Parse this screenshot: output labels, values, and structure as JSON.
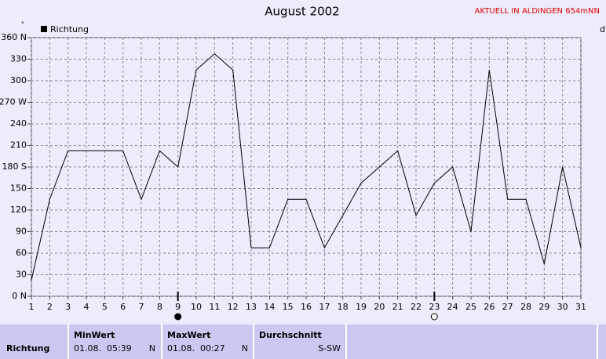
{
  "chart_data": {
    "type": "line",
    "title": "August 2002",
    "subtitle": "AKTUELL IN ALDINGEN 654mNN",
    "corner_label": "d",
    "unit_mark": "°",
    "x": [
      1,
      2,
      3,
      4,
      5,
      6,
      7,
      8,
      9,
      10,
      11,
      12,
      13,
      14,
      15,
      16,
      17,
      18,
      19,
      20,
      21,
      22,
      23,
      24,
      25,
      26,
      27,
      28,
      29,
      30,
      31
    ],
    "xlim": [
      1,
      31
    ],
    "xticks": [
      1,
      2,
      3,
      4,
      5,
      6,
      7,
      8,
      9,
      10,
      11,
      12,
      13,
      14,
      15,
      16,
      17,
      18,
      19,
      20,
      21,
      22,
      23,
      24,
      25,
      26,
      27,
      28,
      29,
      30,
      31
    ],
    "ylim": [
      0,
      360
    ],
    "yticks": [
      {
        "value": 0,
        "label": "0 N"
      },
      30,
      60,
      90,
      120,
      150,
      {
        "value": 180,
        "label": "180 S"
      },
      210,
      240,
      {
        "value": 270,
        "label": "270 W"
      },
      300,
      330,
      {
        "value": 360,
        "label": "360 N"
      }
    ],
    "grid": true,
    "legend": "top-left",
    "series": [
      {
        "name": "Richtung",
        "color": "#000000",
        "values": [
          22.5,
          135,
          202.5,
          202.5,
          202.5,
          202.5,
          135,
          202.5,
          180,
          315,
          337.5,
          315,
          67.5,
          67.5,
          135,
          135,
          67.5,
          112.5,
          157.5,
          180,
          202.5,
          112.5,
          157.5,
          180,
          90,
          315,
          135,
          135,
          45,
          180,
          67.5
        ]
      }
    ],
    "moon_markers": [
      {
        "x": 9,
        "filled": true
      },
      {
        "x": 23,
        "filled": false
      }
    ]
  },
  "table": {
    "headers": [
      "MinWert",
      "MaxWert",
      "Durchschnitt"
    ],
    "rows": [
      [
        "Richtung",
        "01.08.  05:39",
        "N",
        "01.08.  00:27",
        "N",
        "S-SW"
      ]
    ]
  }
}
